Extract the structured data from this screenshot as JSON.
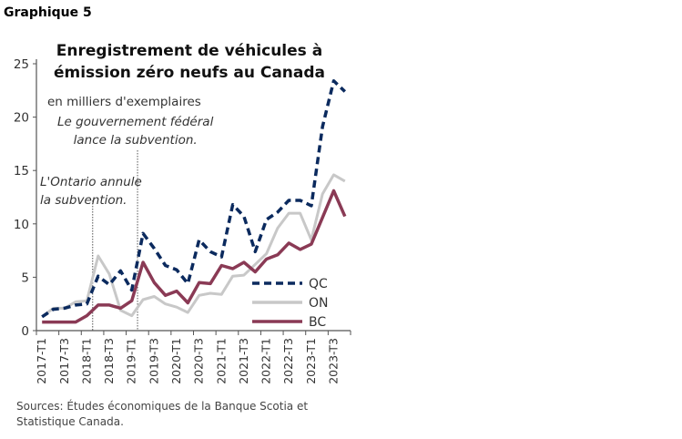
{
  "figure_label": "Graphique 5",
  "source": "Sources: Études économiques de la Banque Scotia et Statistique Canada.",
  "chart_data": {
    "type": "line",
    "title": "Enregistrement de véhicules à émission zéro neufs au Canada",
    "ylabel": "en milliers d'exemplaires",
    "ylim": [
      0,
      25
    ],
    "yticks": [
      0,
      5,
      10,
      15,
      20,
      25
    ],
    "grid": false,
    "legend_position": "bottom-right",
    "x": [
      "2017-T1",
      "2017-T2",
      "2017-T3",
      "2017-T4",
      "2018-T1",
      "2018-T2",
      "2018-T3",
      "2018-T4",
      "2019-T1",
      "2019-T2",
      "2019-T3",
      "2019-T4",
      "2020-T1",
      "2020-T2",
      "2020-T3",
      "2020-T4",
      "2021-T1",
      "2021-T2",
      "2021-T3",
      "2021-T4",
      "2022-T1",
      "2022-T2",
      "2022-T3",
      "2022-T4",
      "2023-T1",
      "2023-T2",
      "2023-T3",
      "2023-T4"
    ],
    "xtick_labels": [
      "2017-T1",
      "2017-T3",
      "2018-T1",
      "2018-T3",
      "2019-T1",
      "2019-T3",
      "2020-T1",
      "2020-T3",
      "2021-T1",
      "2021-T3",
      "2022-T1",
      "2022-T3",
      "2023-T1",
      "2023-T3"
    ],
    "series": [
      {
        "name": "QC",
        "color": "#0b2a5e",
        "style": "dashed",
        "values": [
          1.3,
          2.0,
          2.1,
          2.4,
          2.5,
          5.1,
          4.3,
          5.6,
          3.8,
          9.1,
          7.7,
          6.1,
          5.7,
          4.4,
          8.5,
          7.4,
          6.9,
          11.8,
          10.7,
          7.4,
          10.4,
          11.1,
          12.2,
          12.2,
          11.7,
          19.1,
          23.4,
          22.4
        ]
      },
      {
        "name": "ON",
        "color": "#c8c8c8",
        "style": "solid",
        "values": [
          1.3,
          2.1,
          2.1,
          2.7,
          2.8,
          7.0,
          5.3,
          1.9,
          1.4,
          2.9,
          3.2,
          2.5,
          2.2,
          1.7,
          3.3,
          3.5,
          3.4,
          5.1,
          5.2,
          6.2,
          7.2,
          9.6,
          11.0,
          11.0,
          8.5,
          12.8,
          14.6,
          14.0
        ]
      },
      {
        "name": "BC",
        "color": "#8a3a55",
        "style": "solid",
        "values": [
          0.8,
          0.8,
          0.8,
          0.8,
          1.4,
          2.4,
          2.4,
          2.1,
          2.8,
          6.4,
          4.5,
          3.3,
          3.7,
          2.6,
          4.5,
          4.4,
          6.1,
          5.8,
          6.4,
          5.5,
          6.7,
          7.1,
          8.2,
          7.6,
          8.1,
          10.6,
          13.1,
          10.7
        ]
      }
    ],
    "annotations": [
      {
        "text": "Le gouvernement fédéral lance la subvention.",
        "line1": "Le gouvernement  fédéral",
        "line2": "lance la subvention.",
        "x": "2019-T2"
      },
      {
        "text": "L'Ontario annule la subvention.",
        "line1": "L'Ontario annule",
        "line2": "la subvention.",
        "x": "2018-T2"
      }
    ]
  }
}
